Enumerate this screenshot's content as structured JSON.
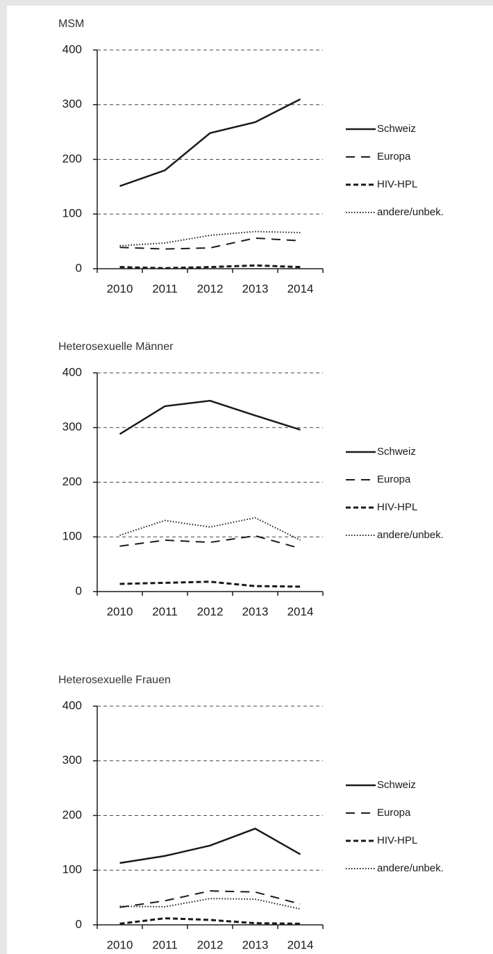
{
  "chart_data": [
    {
      "type": "line",
      "title": "MSM",
      "categories": [
        "2010",
        "2011",
        "2012",
        "2013",
        "2014"
      ],
      "series": [
        {
          "name": "Schweiz",
          "color": "#1a1a1a",
          "linestyle": "solid",
          "linewidth": 2.5,
          "values": [
            151,
            180,
            248,
            268,
            310
          ]
        },
        {
          "name": "Europa",
          "color": "#1a1a1a",
          "linestyle": "dashed",
          "linewidth": 2,
          "values": [
            39,
            36,
            38,
            56,
            51
          ]
        },
        {
          "name": "HIV-HPL",
          "color": "#1a1a1a",
          "linestyle": "dashed",
          "linewidth": 3,
          "values": [
            3,
            1,
            3,
            6,
            3
          ]
        },
        {
          "name": "andere/unbek.",
          "color": "#1a1a1a",
          "linestyle": "dotted",
          "linewidth": 2,
          "values": [
            42,
            47,
            61,
            68,
            66
          ]
        }
      ],
      "ylim": [
        0,
        400
      ],
      "yticks": [
        0,
        100,
        200,
        300,
        400
      ],
      "grid": true,
      "legend": "right"
    },
    {
      "type": "line",
      "title": "Heterosexuelle Männer",
      "categories": [
        "2010",
        "2011",
        "2012",
        "2013",
        "2014"
      ],
      "series": [
        {
          "name": "Schweiz",
          "color": "#1a1a1a",
          "linestyle": "solid",
          "linewidth": 2.5,
          "values": [
            288,
            339,
            349,
            322,
            296
          ]
        },
        {
          "name": "Europa",
          "color": "#1a1a1a",
          "linestyle": "dashed",
          "linewidth": 2,
          "values": [
            83,
            94,
            90,
            102,
            79
          ]
        },
        {
          "name": "HIV-HPL",
          "color": "#1a1a1a",
          "linestyle": "dashed",
          "linewidth": 3,
          "values": [
            14,
            16,
            18,
            10,
            9
          ]
        },
        {
          "name": "andere/unbek.",
          "color": "#1a1a1a",
          "linestyle": "dotted",
          "linewidth": 2,
          "values": [
            103,
            130,
            118,
            135,
            94
          ]
        }
      ],
      "ylim": [
        0,
        400
      ],
      "yticks": [
        0,
        100,
        200,
        300,
        400
      ],
      "grid": true,
      "legend": "right"
    },
    {
      "type": "line",
      "title": "Heterosexuelle Frauen",
      "categories": [
        "2010",
        "2011",
        "2012",
        "2013",
        "2014"
      ],
      "series": [
        {
          "name": "Schweiz",
          "color": "#1a1a1a",
          "linestyle": "solid",
          "linewidth": 2.5,
          "values": [
            113,
            126,
            145,
            176,
            129
          ]
        },
        {
          "name": "Europa",
          "color": "#1a1a1a",
          "linestyle": "dashed",
          "linewidth": 2,
          "values": [
            32,
            44,
            62,
            60,
            38
          ]
        },
        {
          "name": "HIV-HPL",
          "color": "#1a1a1a",
          "linestyle": "dashed",
          "linewidth": 3,
          "values": [
            2,
            12,
            9,
            3,
            2
          ]
        },
        {
          "name": "andere/unbek.",
          "color": "#1a1a1a",
          "linestyle": "dotted",
          "linewidth": 2,
          "values": [
            34,
            33,
            48,
            47,
            29
          ]
        }
      ],
      "ylim": [
        0,
        400
      ],
      "yticks": [
        0,
        100,
        200,
        300,
        400
      ],
      "grid": true,
      "legend": "right"
    }
  ]
}
